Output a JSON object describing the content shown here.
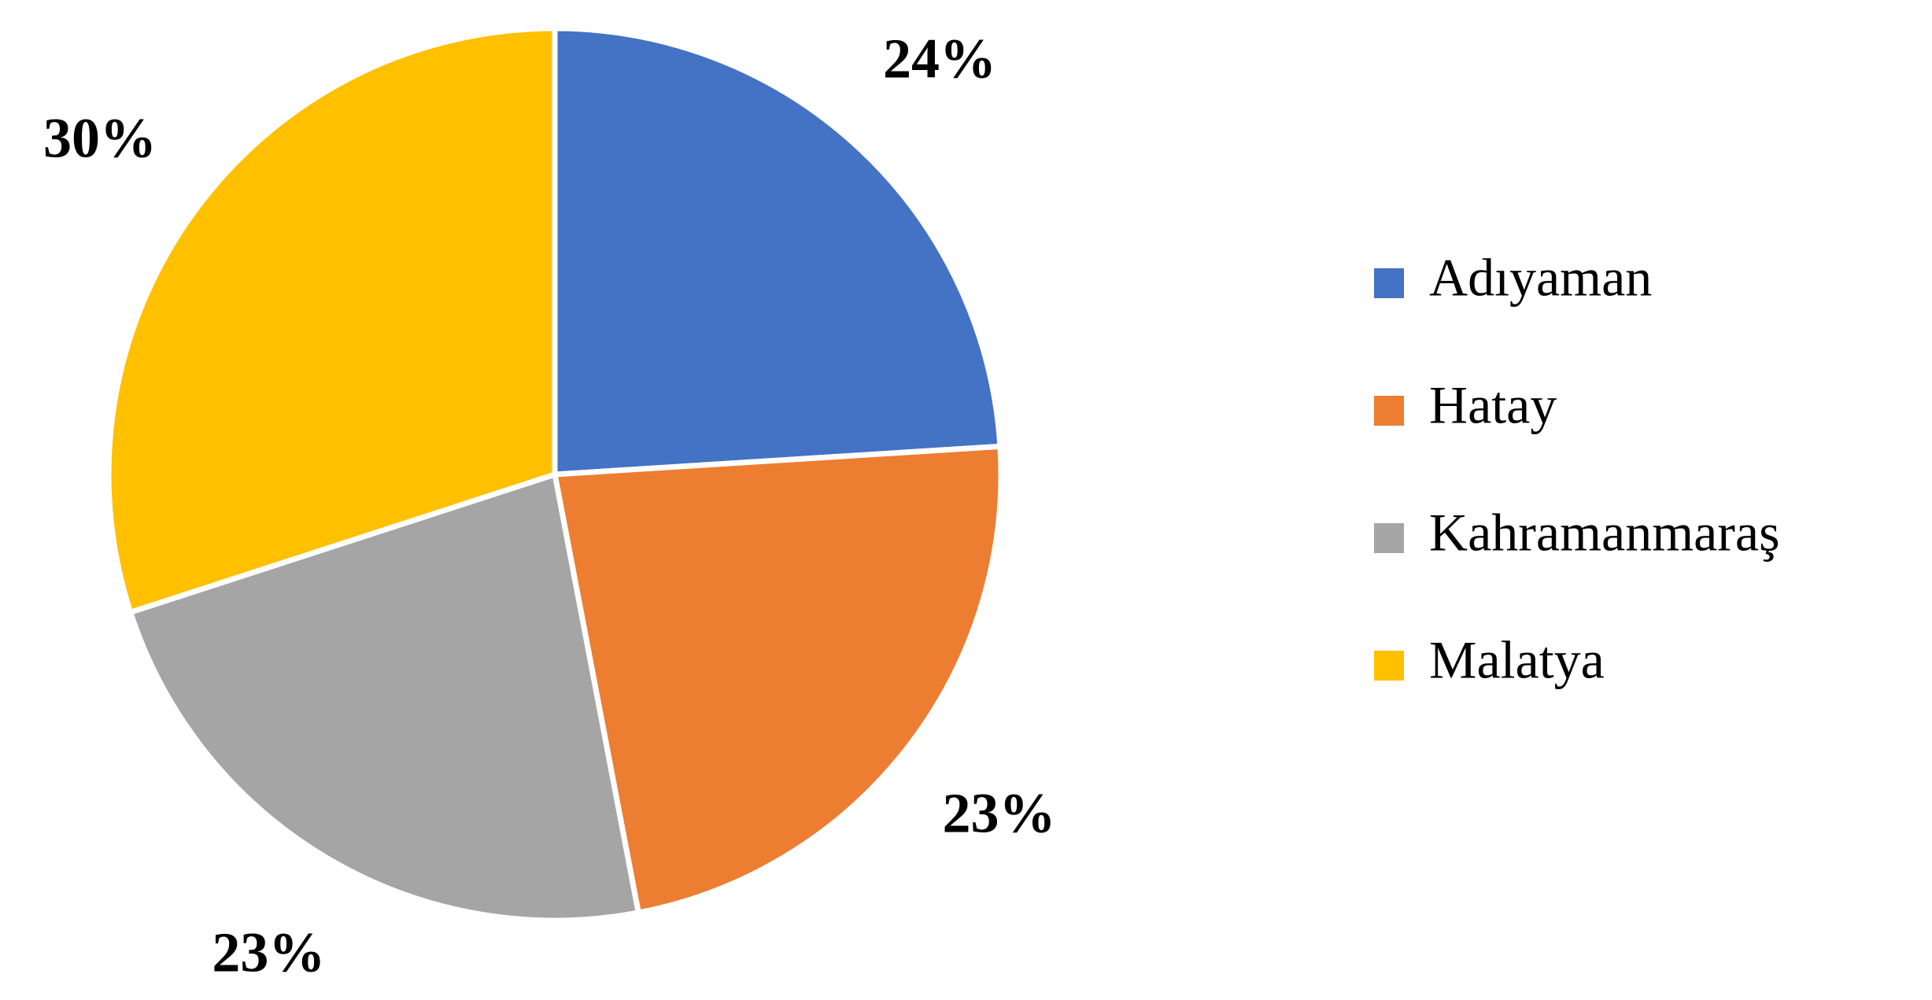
{
  "chart_data": {
    "type": "pie",
    "categories": [
      "Adıyaman",
      "Hatay",
      "Kahramanmaraş",
      "Malatya"
    ],
    "values": [
      24,
      23,
      23,
      30
    ],
    "value_labels": [
      "24%",
      "23%",
      "23%",
      "30%"
    ],
    "colors": [
      "#4472c4",
      "#ed7d31",
      "#a5a5a5",
      "#ffc000"
    ],
    "legend": "right"
  }
}
